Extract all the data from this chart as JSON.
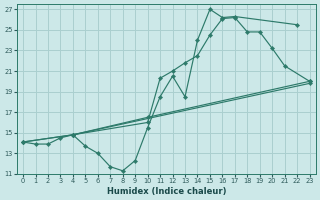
{
  "xlabel": "Humidex (Indice chaleur)",
  "background_color": "#cce8e8",
  "grid_color": "#aacfcf",
  "line_color": "#2d7a6a",
  "xlim": [
    -0.5,
    23.5
  ],
  "ylim": [
    11,
    27.5
  ],
  "xticks": [
    0,
    1,
    2,
    3,
    4,
    5,
    6,
    7,
    8,
    9,
    10,
    11,
    12,
    13,
    14,
    15,
    16,
    17,
    18,
    19,
    20,
    21,
    22,
    23
  ],
  "yticks": [
    11,
    13,
    15,
    17,
    19,
    21,
    23,
    25,
    27
  ],
  "series": [
    {
      "x": [
        0,
        1,
        2,
        3,
        4,
        5,
        6,
        7,
        8,
        9,
        10,
        11,
        12,
        13,
        14,
        15,
        16,
        17,
        22
      ],
      "y": [
        14.1,
        13.9,
        13.9,
        14.5,
        14.8,
        13.7,
        13.0,
        11.7,
        11.3,
        12.3,
        15.5,
        18.5,
        20.5,
        18.5,
        24.0,
        27.0,
        26.2,
        26.3,
        25.5
      ]
    },
    {
      "x": [
        4,
        10,
        11,
        12,
        13,
        14,
        15,
        16,
        17,
        18,
        19,
        20,
        21,
        23
      ],
      "y": [
        14.8,
        16.0,
        20.3,
        21.0,
        21.8,
        22.5,
        24.5,
        26.1,
        26.2,
        24.8,
        24.8,
        23.2,
        21.5,
        20.0
      ]
    },
    {
      "x": [
        0,
        4,
        10,
        23
      ],
      "y": [
        14.1,
        14.8,
        16.5,
        20.0
      ]
    },
    {
      "x": [
        0,
        4,
        23
      ],
      "y": [
        14.1,
        14.8,
        19.8
      ]
    }
  ]
}
